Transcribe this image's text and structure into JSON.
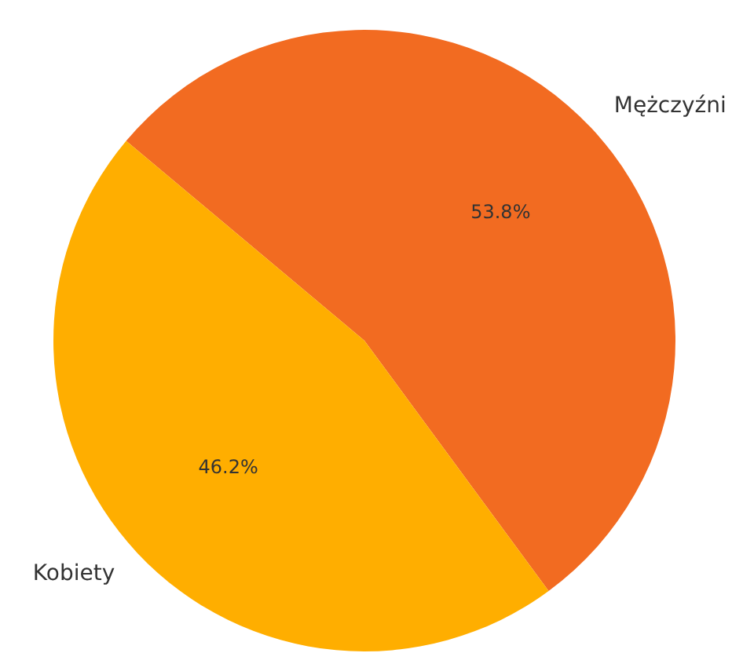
{
  "chart_data": {
    "type": "pie",
    "categories": [
      "Mężczyźni",
      "Kobiety"
    ],
    "values": [
      53.8,
      46.2
    ],
    "colors": [
      "#f26b21",
      "#ffae00"
    ],
    "value_labels": [
      "53.8%",
      "46.2%"
    ],
    "legend": false
  }
}
